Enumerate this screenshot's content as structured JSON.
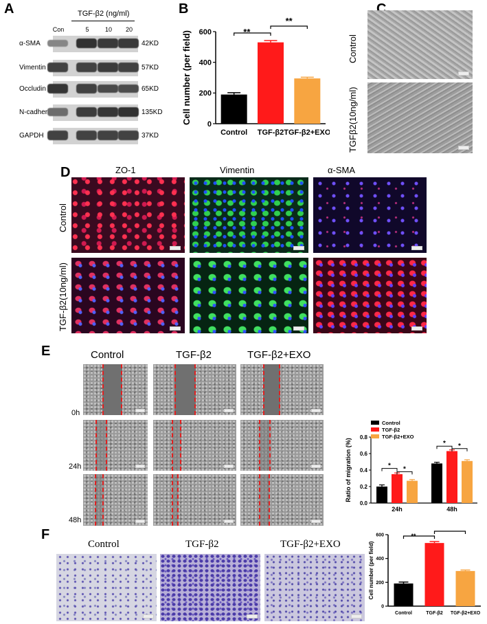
{
  "panelA": {
    "label": "A",
    "treatment_header": "TGF-β2  (ng/ml)",
    "lanes": [
      "Con",
      "5",
      "10",
      "20"
    ],
    "proteins": [
      {
        "name": "α-SMA",
        "size": "42KD"
      },
      {
        "name": "Vimentin",
        "size": "57KD"
      },
      {
        "name": "Occludin",
        "size": "65KD"
      },
      {
        "name": "N-cadherin",
        "size": "135KD"
      },
      {
        "name": "GAPDH",
        "size": "37KD"
      }
    ],
    "band_intensity": [
      [
        0.45,
        0.95,
        0.9,
        0.9
      ],
      [
        0.85,
        0.85,
        0.88,
        0.85
      ],
      [
        0.92,
        0.85,
        0.8,
        0.78
      ],
      [
        0.6,
        0.88,
        0.92,
        0.95
      ],
      [
        0.85,
        0.85,
        0.85,
        0.85
      ]
    ]
  },
  "panelB": {
    "label": "B",
    "chart_data": {
      "type": "bar",
      "categories": [
        "Control",
        "TGF-β2",
        "TGF-β2+EXO"
      ],
      "values": [
        190,
        530,
        295
      ],
      "errors": [
        12,
        12,
        8
      ],
      "colors": [
        "#000000",
        "#ff1a1a",
        "#f7a541"
      ],
      "ylabel": "Cell number (per field)",
      "ylim": [
        0,
        600
      ],
      "yticks": [
        "0",
        "200",
        "400",
        "600"
      ],
      "significance": [
        "**",
        "**"
      ]
    }
  },
  "panelC": {
    "label": "C",
    "rows": [
      "Control",
      "TGFβ2(10ng/ml)"
    ]
  },
  "panelD": {
    "label": "D",
    "columns": [
      "ZO-1",
      "Vimentin",
      "α-SMA"
    ],
    "rows": [
      "Control",
      "TGF-β2(10ng/ml)"
    ]
  },
  "panelE": {
    "label": "E",
    "columns": [
      "Control",
      "TGF-β2",
      "TGF-β2+EXO"
    ],
    "rows": [
      "0h",
      "24h",
      "48h"
    ],
    "chart_data": {
      "type": "bar",
      "categories": [
        "24h",
        "48h"
      ],
      "series": [
        {
          "name": "Control",
          "values": [
            0.2,
            0.48
          ],
          "errors": [
            0.02,
            0.015
          ],
          "color": "#000000"
        },
        {
          "name": "TGF-β2",
          "values": [
            0.35,
            0.63
          ],
          "errors": [
            0.015,
            0.015
          ],
          "color": "#ff1a1a"
        },
        {
          "name": "TGF-β2+EXO",
          "values": [
            0.27,
            0.51
          ],
          "errors": [
            0.015,
            0.015
          ],
          "color": "#f7a541"
        }
      ],
      "ylabel": "Ratio of migration (%)",
      "ylim": [
        0,
        0.8
      ],
      "yticks": [
        "0.0",
        "0.2",
        "0.4",
        "0.6",
        "0.8"
      ],
      "significance": [
        "*",
        "*",
        "*",
        "*"
      ]
    }
  },
  "panelF": {
    "label": "F",
    "columns": [
      "Control",
      "TGF-β2",
      "TGF-β2+EXO"
    ],
    "chart_data": {
      "type": "bar",
      "categories": [
        "Control",
        "TGF-β2",
        "TGF-β2+EXO"
      ],
      "values": [
        190,
        530,
        295
      ],
      "errors": [
        12,
        12,
        8
      ],
      "colors": [
        "#000000",
        "#ff1a1a",
        "#f7a541"
      ],
      "ylabel": "Cell number (per field)",
      "ylim": [
        0,
        600
      ],
      "yticks": [
        "0",
        "200",
        "400",
        "600"
      ],
      "significance": [
        "**",
        "**"
      ]
    }
  }
}
